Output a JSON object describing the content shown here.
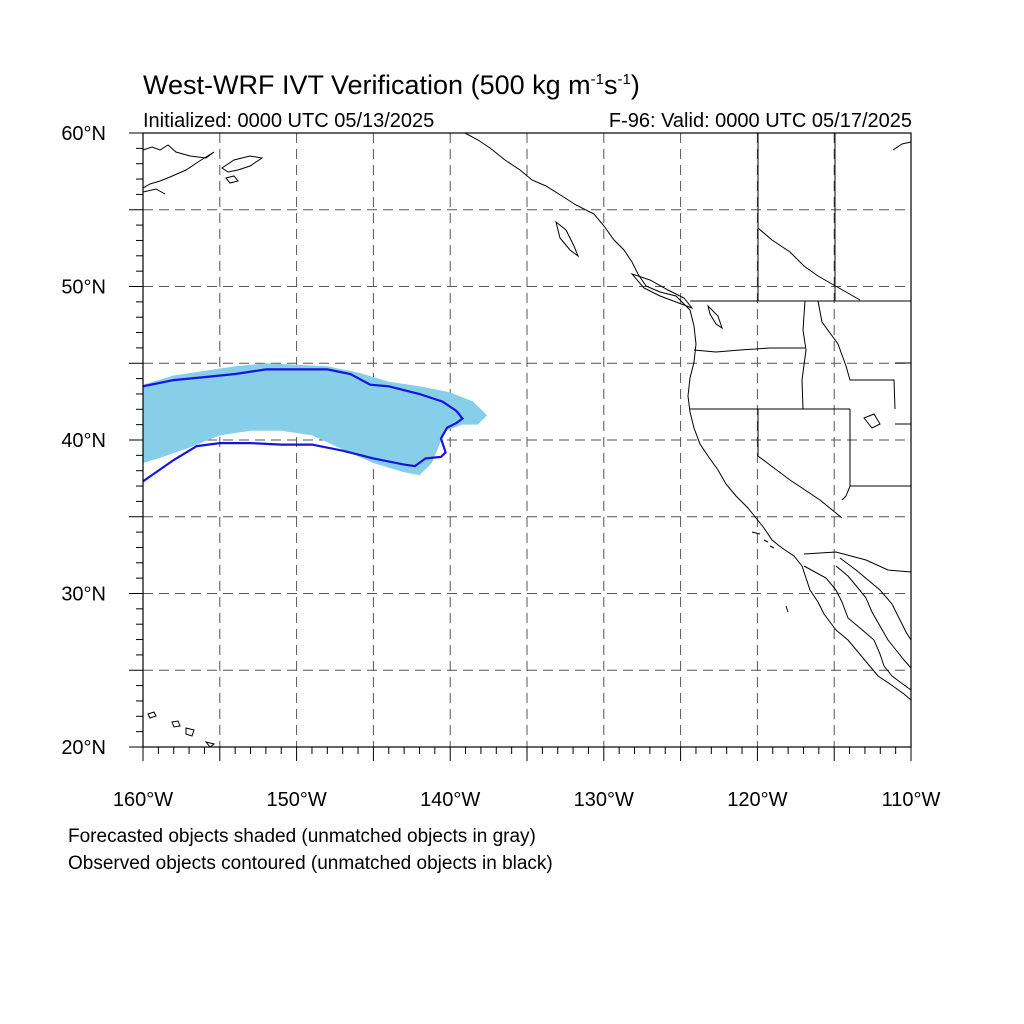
{
  "title": {
    "main": "West-WRF IVT Verification (500 kg m",
    "exp1": "-1",
    "mid": "s",
    "exp2": "-1",
    "tail": ")"
  },
  "subtitle_left": "Initialized: 0000 UTC 05/13/2025",
  "subtitle_right": "F-96: Valid: 0000 UTC 05/17/2025",
  "map": {
    "lon_range": [
      -160,
      -110
    ],
    "lat_range": [
      20,
      60
    ],
    "lon_labels": [
      "160°W",
      "150°W",
      "140°W",
      "130°W",
      "120°W",
      "110°W"
    ],
    "lon_label_values": [
      -160,
      -150,
      -140,
      -130,
      -120,
      -110
    ],
    "lat_labels": [
      "20°N",
      "30°N",
      "40°N",
      "50°N",
      "60°N"
    ],
    "lat_label_values": [
      20,
      30,
      40,
      50,
      60
    ],
    "gridline_lons": [
      -155,
      -150,
      -145,
      -140,
      -135,
      -130,
      -125,
      -120,
      -115
    ],
    "gridline_lats": [
      25,
      30,
      35,
      40,
      45,
      50,
      55
    ],
    "forecast_color": "#87CEE8",
    "observed_color": "#1515E0",
    "coast_color": "#000000",
    "forecast_object_lonlat": [
      [
        -160,
        43.6
      ],
      [
        -158,
        44.2
      ],
      [
        -156,
        44.5
      ],
      [
        -154,
        44.8
      ],
      [
        -152,
        45.0
      ],
      [
        -150,
        44.9
      ],
      [
        -148,
        44.8
      ],
      [
        -146,
        44.4
      ],
      [
        -144,
        43.8
      ],
      [
        -142,
        43.5
      ],
      [
        -140,
        43.1
      ],
      [
        -138.5,
        42.5
      ],
      [
        -137.6,
        41.6
      ],
      [
        -138.2,
        41.0
      ],
      [
        -139.2,
        41.0
      ],
      [
        -140.3,
        40.6
      ],
      [
        -140.7,
        39.7
      ],
      [
        -141.2,
        38.5
      ],
      [
        -142,
        37.7
      ],
      [
        -143,
        37.9
      ],
      [
        -145,
        38.5
      ],
      [
        -147,
        39.4
      ],
      [
        -149,
        40.3
      ],
      [
        -151,
        40.6
      ],
      [
        -153,
        40.6
      ],
      [
        -155,
        40.3
      ],
      [
        -157,
        39.5
      ],
      [
        -159,
        38.8
      ],
      [
        -160,
        38.5
      ]
    ],
    "observed_object_lonlat": [
      [
        -160,
        43.5
      ],
      [
        -158,
        43.9
      ],
      [
        -156,
        44.1
      ],
      [
        -154,
        44.3
      ],
      [
        -152,
        44.6
      ],
      [
        -150,
        44.6
      ],
      [
        -148,
        44.6
      ],
      [
        -146.5,
        44.3
      ],
      [
        -145.2,
        43.6
      ],
      [
        -144,
        43.5
      ],
      [
        -142,
        43.0
      ],
      [
        -140.5,
        42.5
      ],
      [
        -139.6,
        41.9
      ],
      [
        -139.2,
        41.4
      ],
      [
        -139.6,
        41.1
      ],
      [
        -140.2,
        40.8
      ],
      [
        -140.6,
        40.1
      ],
      [
        -140.3,
        39.2
      ],
      [
        -140.6,
        38.9
      ],
      [
        -141.6,
        38.8
      ],
      [
        -142.3,
        38.3
      ],
      [
        -143,
        38.4
      ],
      [
        -145,
        38.8
      ],
      [
        -147,
        39.3
      ],
      [
        -149,
        39.7
      ],
      [
        -151,
        39.7
      ],
      [
        -153,
        39.8
      ],
      [
        -155,
        39.8
      ],
      [
        -156.5,
        39.6
      ],
      [
        -158,
        38.7
      ],
      [
        -160,
        37.3
      ]
    ]
  },
  "footer": {
    "line1": "Forecasted objects shaded (unmatched objects in gray)",
    "line2": "Observed objects contoured (unmatched objects in black)"
  }
}
